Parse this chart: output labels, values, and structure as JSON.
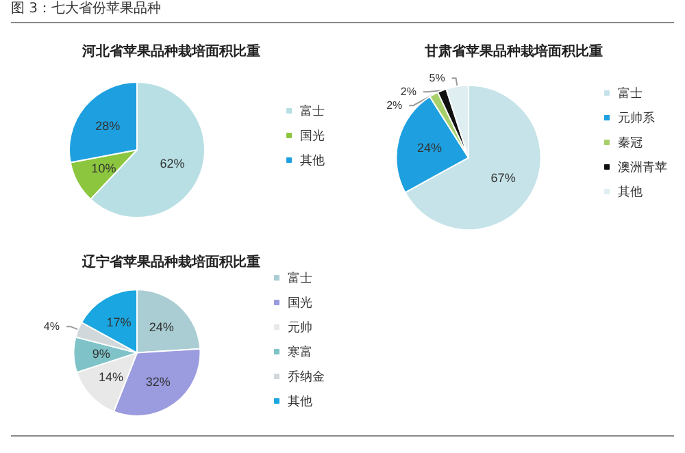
{
  "chart_data": [
    {
      "type": "pie",
      "title": "河北省苹果品种栽培面积比重",
      "annotations": [
        "图 3：七大省份苹果品种"
      ],
      "categories": [
        "富士",
        "国光",
        "其他"
      ],
      "values": [
        62,
        10,
        28
      ],
      "colors": [
        "#b7dfe4",
        "#8cc63f",
        "#1ea0e0"
      ],
      "value_labels": [
        "62%",
        "10%",
        "28%"
      ],
      "legend": "right"
    },
    {
      "type": "pie",
      "title": "甘肃省苹果品种栽培面积比重",
      "categories": [
        "富士",
        "元帅系",
        "秦冠",
        "澳洲青苹",
        "其他"
      ],
      "values": [
        67,
        24,
        2,
        2,
        5
      ],
      "colors": [
        "#c5e3e8",
        "#1ea0e0",
        "#a8d06a",
        "#111111",
        "#dfeef0"
      ],
      "value_labels": [
        "67%",
        "24%",
        "2%",
        "2%",
        "5%"
      ],
      "legend": "right"
    },
    {
      "type": "pie",
      "title": "辽宁省苹果品种栽培面积比重",
      "categories": [
        "富士",
        "国光",
        "元帅",
        "寒富",
        "乔纳金",
        "其他"
      ],
      "values": [
        24,
        32,
        14,
        9,
        4,
        17
      ],
      "colors": [
        "#a9cdd2",
        "#9b9be0",
        "#e8e8e8",
        "#7fc3c8",
        "#d0d8dc",
        "#1aa6e0"
      ],
      "value_labels": [
        "24%",
        "32%",
        "14%",
        "9%",
        "4%",
        "17%"
      ],
      "legend": "right"
    }
  ]
}
